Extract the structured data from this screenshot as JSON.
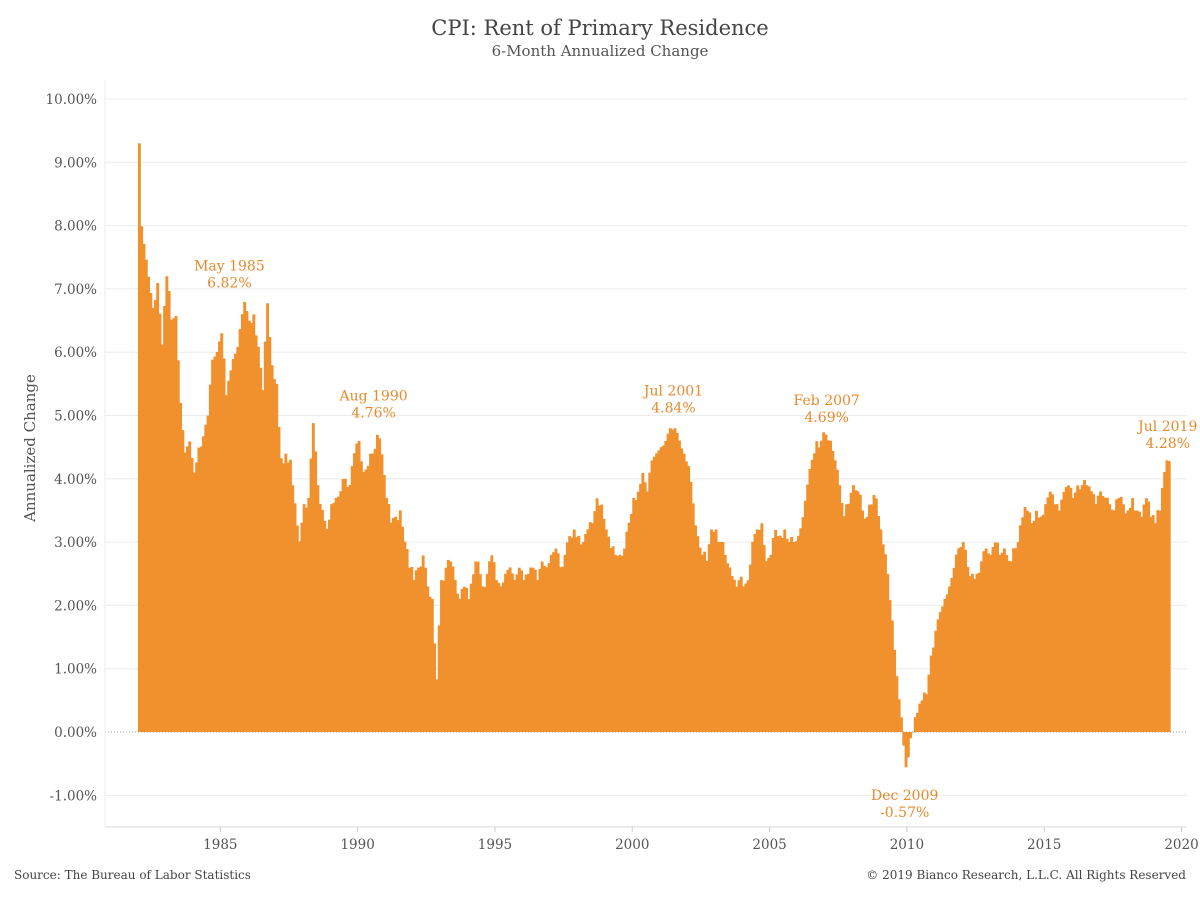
{
  "chart_data": {
    "type": "bar",
    "title": "CPI: Rent of Primary Residence",
    "subtitle": "6-Month Annualized Change",
    "xlabel": "",
    "ylabel": "Annualized Change",
    "ylim": [
      -1.5,
      10.3
    ],
    "y_ticks": [
      -1,
      0,
      1,
      2,
      3,
      4,
      5,
      6,
      7,
      8,
      9,
      10
    ],
    "y_tick_labels": [
      "-1.00%",
      "0.00%",
      "1.00%",
      "2.00%",
      "3.00%",
      "4.00%",
      "5.00%",
      "6.00%",
      "7.00%",
      "8.00%",
      "9.00%",
      "10.00%"
    ],
    "x_range": [
      1980.8,
      2020.2
    ],
    "x_ticks": [
      1985,
      1990,
      1995,
      2000,
      2005,
      2010,
      2015,
      2020
    ],
    "x_tick_labels": [
      "1985",
      "1990",
      "1995",
      "2000",
      "2005",
      "2010",
      "2015",
      "2020"
    ],
    "grid": "horizontal",
    "bar_color": "#f0912e",
    "annotation_color": "#e8892a",
    "series": [
      {
        "start_year": 1982,
        "start_month": 1,
        "end_year": 2019,
        "end_month": 7,
        "frequency": "monthly",
        "points": [
          [
            1982.0,
            9.3
          ],
          [
            1982.08,
            8.0
          ],
          [
            1982.17,
            7.7
          ],
          [
            1982.33,
            7.2
          ],
          [
            1982.5,
            6.7
          ],
          [
            1982.67,
            7.1
          ],
          [
            1982.83,
            6.1
          ],
          [
            1983.0,
            7.2
          ],
          [
            1983.17,
            6.5
          ],
          [
            1983.33,
            6.6
          ],
          [
            1983.5,
            5.2
          ],
          [
            1983.67,
            4.4
          ],
          [
            1983.83,
            4.6
          ],
          [
            1984.0,
            4.1
          ],
          [
            1984.17,
            4.5
          ],
          [
            1984.5,
            5.0
          ],
          [
            1984.67,
            5.9
          ],
          [
            1984.83,
            6.0
          ],
          [
            1985.0,
            6.3
          ],
          [
            1985.17,
            5.3
          ],
          [
            1985.42,
            5.9
          ],
          [
            1985.6,
            6.1
          ],
          [
            1985.75,
            6.6
          ],
          [
            1985.83,
            6.8
          ],
          [
            1986.0,
            6.5
          ],
          [
            1986.17,
            6.6
          ],
          [
            1986.33,
            6.1
          ],
          [
            1986.5,
            5.4
          ],
          [
            1986.67,
            6.8
          ],
          [
            1986.83,
            5.8
          ],
          [
            1987.0,
            5.5
          ],
          [
            1987.17,
            4.3
          ],
          [
            1987.33,
            4.4
          ],
          [
            1987.5,
            4.3
          ],
          [
            1987.67,
            3.6
          ],
          [
            1987.83,
            3.0
          ],
          [
            1988.0,
            3.6
          ],
          [
            1988.17,
            3.7
          ],
          [
            1988.33,
            4.9
          ],
          [
            1988.5,
            3.9
          ],
          [
            1988.67,
            3.5
          ],
          [
            1988.83,
            3.2
          ],
          [
            1989.0,
            3.6
          ],
          [
            1989.17,
            3.7
          ],
          [
            1989.33,
            3.8
          ],
          [
            1989.5,
            4.0
          ],
          [
            1989.67,
            3.9
          ],
          [
            1989.83,
            4.4
          ],
          [
            1990.0,
            4.6
          ],
          [
            1990.17,
            4.1
          ],
          [
            1990.33,
            4.2
          ],
          [
            1990.5,
            4.4
          ],
          [
            1990.67,
            4.7
          ],
          [
            1990.83,
            4.4
          ],
          [
            1991.0,
            3.7
          ],
          [
            1991.17,
            3.3
          ],
          [
            1991.33,
            3.4
          ],
          [
            1991.5,
            3.5
          ],
          [
            1991.67,
            3.0
          ],
          [
            1991.83,
            2.6
          ],
          [
            1992.0,
            2.4
          ],
          [
            1992.17,
            2.6
          ],
          [
            1992.33,
            2.8
          ],
          [
            1992.5,
            2.3
          ],
          [
            1992.67,
            2.1
          ],
          [
            1992.83,
            0.8
          ],
          [
            1993.0,
            2.4
          ],
          [
            1993.17,
            2.6
          ],
          [
            1993.33,
            2.7
          ],
          [
            1993.5,
            2.4
          ],
          [
            1993.67,
            2.1
          ],
          [
            1993.83,
            2.3
          ],
          [
            1994.0,
            2.1
          ],
          [
            1994.17,
            2.5
          ],
          [
            1994.33,
            2.7
          ],
          [
            1994.5,
            2.3
          ],
          [
            1994.67,
            2.5
          ],
          [
            1994.83,
            2.8
          ],
          [
            1995.0,
            2.4
          ],
          [
            1995.17,
            2.3
          ],
          [
            1995.33,
            2.5
          ],
          [
            1995.5,
            2.6
          ],
          [
            1995.67,
            2.4
          ],
          [
            1995.83,
            2.6
          ],
          [
            1996.0,
            2.4
          ],
          [
            1996.17,
            2.5
          ],
          [
            1996.33,
            2.6
          ],
          [
            1996.5,
            2.4
          ],
          [
            1996.67,
            2.7
          ],
          [
            1996.83,
            2.6
          ],
          [
            1997.0,
            2.8
          ],
          [
            1997.17,
            2.9
          ],
          [
            1997.33,
            2.6
          ],
          [
            1997.5,
            2.8
          ],
          [
            1997.67,
            3.1
          ],
          [
            1997.83,
            3.2
          ],
          [
            1998.0,
            3.1
          ],
          [
            1998.17,
            3.0
          ],
          [
            1998.33,
            3.2
          ],
          [
            1998.5,
            3.3
          ],
          [
            1998.67,
            3.7
          ],
          [
            1998.83,
            3.6
          ],
          [
            1999.0,
            3.2
          ],
          [
            1999.17,
            2.9
          ],
          [
            1999.33,
            2.8
          ],
          [
            1999.5,
            2.8
          ],
          [
            1999.67,
            2.9
          ],
          [
            1999.83,
            3.3
          ],
          [
            2000.0,
            3.7
          ],
          [
            2000.17,
            3.8
          ],
          [
            2000.33,
            4.1
          ],
          [
            2000.5,
            3.8
          ],
          [
            2000.67,
            4.3
          ],
          [
            2000.83,
            4.4
          ],
          [
            2001.0,
            4.5
          ],
          [
            2001.17,
            4.6
          ],
          [
            2001.33,
            4.8
          ],
          [
            2001.5,
            4.8
          ],
          [
            2001.67,
            4.6
          ],
          [
            2001.83,
            4.4
          ],
          [
            2002.0,
            4.2
          ],
          [
            2002.17,
            3.6
          ],
          [
            2002.33,
            3.1
          ],
          [
            2002.5,
            2.8
          ],
          [
            2002.67,
            2.7
          ],
          [
            2002.83,
            3.2
          ],
          [
            2003.0,
            3.2
          ],
          [
            2003.17,
            3.0
          ],
          [
            2003.33,
            2.8
          ],
          [
            2003.5,
            2.6
          ],
          [
            2003.67,
            2.4
          ],
          [
            2003.83,
            2.4
          ],
          [
            2004.0,
            2.3
          ],
          [
            2004.17,
            2.4
          ],
          [
            2004.33,
            3.0
          ],
          [
            2004.5,
            3.2
          ],
          [
            2004.67,
            3.3
          ],
          [
            2004.83,
            2.7
          ],
          [
            2005.0,
            2.8
          ],
          [
            2005.17,
            3.2
          ],
          [
            2005.33,
            3.1
          ],
          [
            2005.5,
            3.2
          ],
          [
            2005.67,
            3.0
          ],
          [
            2005.83,
            3.0
          ],
          [
            2006.0,
            3.1
          ],
          [
            2006.17,
            3.4
          ],
          [
            2006.33,
            3.9
          ],
          [
            2006.5,
            4.3
          ],
          [
            2006.67,
            4.6
          ],
          [
            2006.83,
            4.6
          ],
          [
            2007.0,
            4.7
          ],
          [
            2007.17,
            4.6
          ],
          [
            2007.33,
            4.3
          ],
          [
            2007.5,
            3.9
          ],
          [
            2007.67,
            3.4
          ],
          [
            2007.83,
            3.6
          ],
          [
            2008.0,
            3.9
          ],
          [
            2008.17,
            3.8
          ],
          [
            2008.33,
            3.5
          ],
          [
            2008.5,
            3.4
          ],
          [
            2008.67,
            3.6
          ],
          [
            2008.83,
            3.7
          ],
          [
            2009.0,
            3.2
          ],
          [
            2009.17,
            2.8
          ],
          [
            2009.33,
            2.1
          ],
          [
            2009.5,
            1.3
          ],
          [
            2009.67,
            0.5
          ],
          [
            2009.83,
            -0.2
          ],
          [
            2009.92,
            -0.57
          ],
          [
            2010.0,
            -0.4
          ],
          [
            2010.17,
            0.0
          ],
          [
            2010.33,
            0.3
          ],
          [
            2010.5,
            0.5
          ],
          [
            2010.67,
            0.6
          ],
          [
            2010.83,
            1.2
          ],
          [
            2011.0,
            1.6
          ],
          [
            2011.17,
            1.9
          ],
          [
            2011.33,
            2.1
          ],
          [
            2011.5,
            2.3
          ],
          [
            2011.67,
            2.6
          ],
          [
            2011.83,
            2.9
          ],
          [
            2012.0,
            3.0
          ],
          [
            2012.17,
            2.6
          ],
          [
            2012.33,
            2.5
          ],
          [
            2012.5,
            2.5
          ],
          [
            2012.67,
            2.7
          ],
          [
            2012.83,
            2.9
          ],
          [
            2013.0,
            2.8
          ],
          [
            2013.17,
            3.0
          ],
          [
            2013.33,
            2.8
          ],
          [
            2013.5,
            2.9
          ],
          [
            2013.67,
            2.7
          ],
          [
            2013.83,
            2.9
          ],
          [
            2014.0,
            3.0
          ],
          [
            2014.17,
            3.4
          ],
          [
            2014.33,
            3.5
          ],
          [
            2014.5,
            3.3
          ],
          [
            2014.67,
            3.5
          ],
          [
            2014.83,
            3.4
          ],
          [
            2015.0,
            3.6
          ],
          [
            2015.17,
            3.8
          ],
          [
            2015.33,
            3.6
          ],
          [
            2015.5,
            3.5
          ],
          [
            2015.67,
            3.8
          ],
          [
            2015.83,
            3.9
          ],
          [
            2016.0,
            3.7
          ],
          [
            2016.17,
            3.9
          ],
          [
            2016.33,
            3.9
          ],
          [
            2016.5,
            3.9
          ],
          [
            2016.67,
            3.8
          ],
          [
            2016.83,
            3.6
          ],
          [
            2017.0,
            3.8
          ],
          [
            2017.17,
            3.7
          ],
          [
            2017.33,
            3.6
          ],
          [
            2017.5,
            3.5
          ],
          [
            2017.67,
            3.7
          ],
          [
            2017.83,
            3.6
          ],
          [
            2018.0,
            3.5
          ],
          [
            2018.17,
            3.7
          ],
          [
            2018.33,
            3.5
          ],
          [
            2018.5,
            3.4
          ],
          [
            2018.67,
            3.7
          ],
          [
            2018.83,
            3.4
          ],
          [
            2019.0,
            3.3
          ],
          [
            2019.17,
            3.5
          ],
          [
            2019.33,
            4.1
          ],
          [
            2019.42,
            4.3
          ],
          [
            2019.5,
            4.28
          ]
        ]
      }
    ],
    "annotations": [
      {
        "x": 1985.33,
        "y": 6.82,
        "label": "May 1985",
        "value": "6.82%",
        "position": "above"
      },
      {
        "x": 1990.58,
        "y": 4.76,
        "label": "Aug 1990",
        "value": "4.76%",
        "position": "above"
      },
      {
        "x": 2001.5,
        "y": 4.84,
        "label": "Jul 2001",
        "value": "4.84%",
        "position": "above"
      },
      {
        "x": 2007.08,
        "y": 4.69,
        "label": "Feb 2007",
        "value": "4.69%",
        "position": "above"
      },
      {
        "x": 2009.92,
        "y": -0.57,
        "label": "Dec 2009",
        "value": "-0.57%",
        "position": "below"
      },
      {
        "x": 2019.5,
        "y": 4.28,
        "label": "Jul 2019",
        "value": "4.28%",
        "position": "above"
      }
    ]
  },
  "footer": {
    "source": "Source: The Bureau of Labor Statistics",
    "copyright": "© 2019 Bianco Research, L.L.C. All Rights Reserved"
  }
}
